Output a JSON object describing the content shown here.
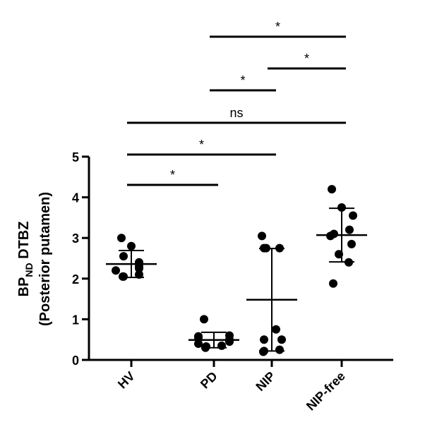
{
  "chart_data": {
    "type": "scatter",
    "ylabel": {
      "main": "BP",
      "subscript": "ND",
      "suffix": " DTBZ",
      "line2": "(Posterior putamen)"
    },
    "categories": [
      "HV",
      "PD",
      "NIP",
      "NIP-free"
    ],
    "ylim": [
      0,
      5
    ],
    "yticks": [
      0,
      1,
      2,
      3,
      4,
      5
    ],
    "grid": false,
    "point_color": "#000000",
    "groups": [
      {
        "name": "HV",
        "points": [
          2.05,
          2.05,
          2.1,
          2.2,
          2.25,
          2.3,
          2.4,
          2.55,
          2.8,
          3.0
        ],
        "mean": 2.36,
        "sd_low": 2.03,
        "sd_high": 2.69
      },
      {
        "name": "PD",
        "points": [
          0.3,
          0.33,
          0.35,
          0.4,
          0.45,
          0.5,
          0.55,
          0.58,
          0.6,
          1.0
        ],
        "mean": 0.49,
        "sd_low": 0.3,
        "sd_high": 0.68
      },
      {
        "name": "NIP",
        "points": [
          0.2,
          0.22,
          0.25,
          0.5,
          0.5,
          0.75,
          2.75,
          2.75,
          2.75,
          3.05
        ],
        "mean": 1.48,
        "sd_low": 0.22,
        "sd_high": 2.74
      },
      {
        "name": "NIP-free",
        "points": [
          1.88,
          2.4,
          2.6,
          2.85,
          3.05,
          3.1,
          3.2,
          3.55,
          3.75,
          4.2
        ],
        "mean": 3.07,
        "sd_low": 2.41,
        "sd_high": 3.73
      }
    ],
    "comparisons": [
      {
        "from": "HV",
        "to": "PD",
        "label": "*",
        "level": 0
      },
      {
        "from": "HV",
        "to": "NIP",
        "label": "*",
        "level": 1
      },
      {
        "from": "HV",
        "to": "NIP-free",
        "label": "ns",
        "level": 2
      },
      {
        "from": "PD",
        "to": "NIP",
        "label": "*",
        "level": 3
      },
      {
        "from": "NIP",
        "to": "NIP-free",
        "label": "*",
        "level": 4
      },
      {
        "from": "PD",
        "to": "NIP-free",
        "label": "*",
        "level": 5
      }
    ]
  }
}
